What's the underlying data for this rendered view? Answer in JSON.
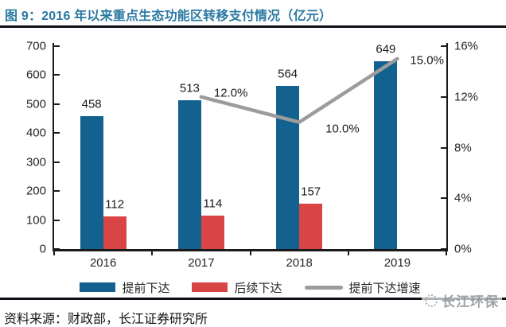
{
  "header": {
    "title": "图 9：2016 年以来重点生态功能区转移支付情况（亿元）"
  },
  "chart_data": {
    "type": "bar",
    "title": "2016 年以来重点生态功能区转移支付情况（亿元）",
    "categories": [
      "2016",
      "2017",
      "2018",
      "2019"
    ],
    "series": [
      {
        "key": "advance",
        "name": "提前下达",
        "type": "bar",
        "color": "#12618E",
        "values": [
          458,
          513,
          564,
          649
        ],
        "labels": [
          "458",
          "513",
          "564",
          "649"
        ]
      },
      {
        "key": "followup",
        "name": "后续下达",
        "type": "bar",
        "color": "#D94444",
        "values": [
          112,
          114,
          157,
          null
        ],
        "labels": [
          "112",
          "114",
          "157",
          null
        ]
      },
      {
        "key": "growth",
        "name": "提前下达增速",
        "type": "line",
        "color": "#9C9C9C",
        "values": [
          null,
          12,
          10,
          15
        ],
        "labels": [
          null,
          "12.0%",
          "10.0%",
          "15.0%"
        ]
      }
    ],
    "left_axis": {
      "min": 0,
      "max": 700,
      "step": 100,
      "tick_labels": [
        "0",
        "100",
        "200",
        "300",
        "400",
        "500",
        "600",
        "700"
      ]
    },
    "right_axis": {
      "min": 0,
      "max": 16,
      "step": 4,
      "tick_labels": [
        "0%",
        "4%",
        "8%",
        "12%",
        "16%"
      ]
    },
    "grid": false,
    "legend_position": "bottom"
  },
  "legend": {
    "items": [
      {
        "label": "提前下达",
        "color": "#12618E",
        "swatch": "rect"
      },
      {
        "label": "后续下达",
        "color": "#D94444",
        "swatch": "rect"
      },
      {
        "label": "提前下达增速",
        "color": "#9C9C9C",
        "swatch": "line"
      }
    ]
  },
  "watermark": {
    "text": "长江环保"
  },
  "footer": {
    "source": "资料来源：财政部，长江证券研究所"
  },
  "colors": {
    "title": "#2A79A2",
    "bar_blue": "#12618E",
    "bar_red": "#D94444",
    "line_gray": "#9C9C9C",
    "rule": "#0E0E16",
    "axis": "#1A1A1A"
  }
}
